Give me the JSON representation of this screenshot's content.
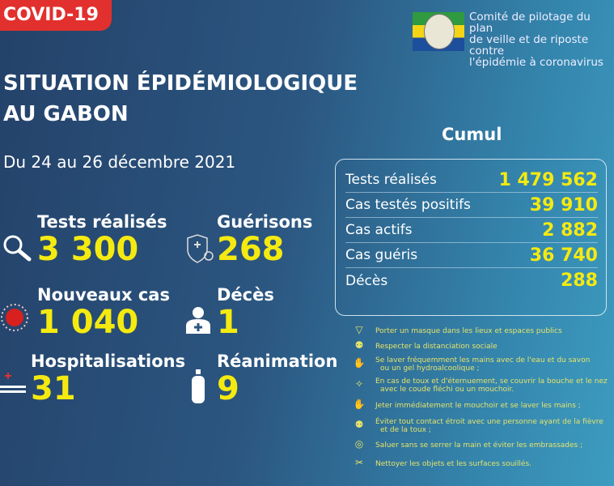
{
  "badge": "COVID-19",
  "committee": {
    "line1": "Comité de pilotage du plan",
    "line2": "de veille et de riposte contre",
    "line3": "l'épidémie à coronavirus"
  },
  "title": {
    "line1": "SITUATION ÉPIDÉMIOLOGIQUE",
    "line2": "AU GABON"
  },
  "period": "Du 24 au 26 décembre 2021",
  "stats": [
    {
      "label": "Tests réalisés",
      "value": "3 300",
      "icon": "magnifier-icon"
    },
    {
      "label": "Guérisons",
      "value": "268",
      "icon": "shield-cross-icon"
    },
    {
      "label": "Nouveaux cas",
      "value": "1 040",
      "icon": "virus-icon"
    },
    {
      "label": "Décès",
      "value": "1",
      "icon": "person-cross-icon"
    },
    {
      "label": "Hospitalisations",
      "value": "31",
      "icon": "hospital-bed-icon"
    },
    {
      "label": "Réanimation",
      "value": "9",
      "icon": "oxygen-tank-icon"
    }
  ],
  "cumul": {
    "title": "Cumul",
    "rows": [
      {
        "label": "Tests réalisés",
        "value": "1 479 562"
      },
      {
        "label": "Cas testés positifs",
        "value": "39 910"
      },
      {
        "label": "Cas actifs",
        "value": "2 882"
      },
      {
        "label": "Cas guéris",
        "value": "36 740"
      },
      {
        "label": "Décès",
        "value": "288"
      }
    ]
  },
  "precautions": [
    {
      "l1": "Porter un masque dans les lieux et espaces publics",
      "l2": ""
    },
    {
      "l1": "Respecter la distanciation sociale",
      "l2": ""
    },
    {
      "l1": "Se laver fréquemment les mains avec de l'eau et du savon",
      "l2": "ou un gel hydroalcoolique ;"
    },
    {
      "l1": "En cas de toux et d'éternuement, se couvrir la bouche et le nez",
      "l2": "avec le coude fléchi ou un mouchoir."
    },
    {
      "l1": "Jeter immédiatement le mouchoir et se laver les mains ;",
      "l2": ""
    },
    {
      "l1": "Éviter tout contact étroit avec une personne ayant de la fièvre",
      "l2": "et de la toux ;"
    },
    {
      "l1": "Saluer sans se serrer la main et éviter les embrassades ;",
      "l2": ""
    },
    {
      "l1": "Nettoyer les objets et les surfaces souillés.",
      "l2": ""
    }
  ],
  "colors": {
    "accent_yellow": "#f5ea10",
    "badge_red": "#e2302e",
    "background": "#2b5680"
  }
}
